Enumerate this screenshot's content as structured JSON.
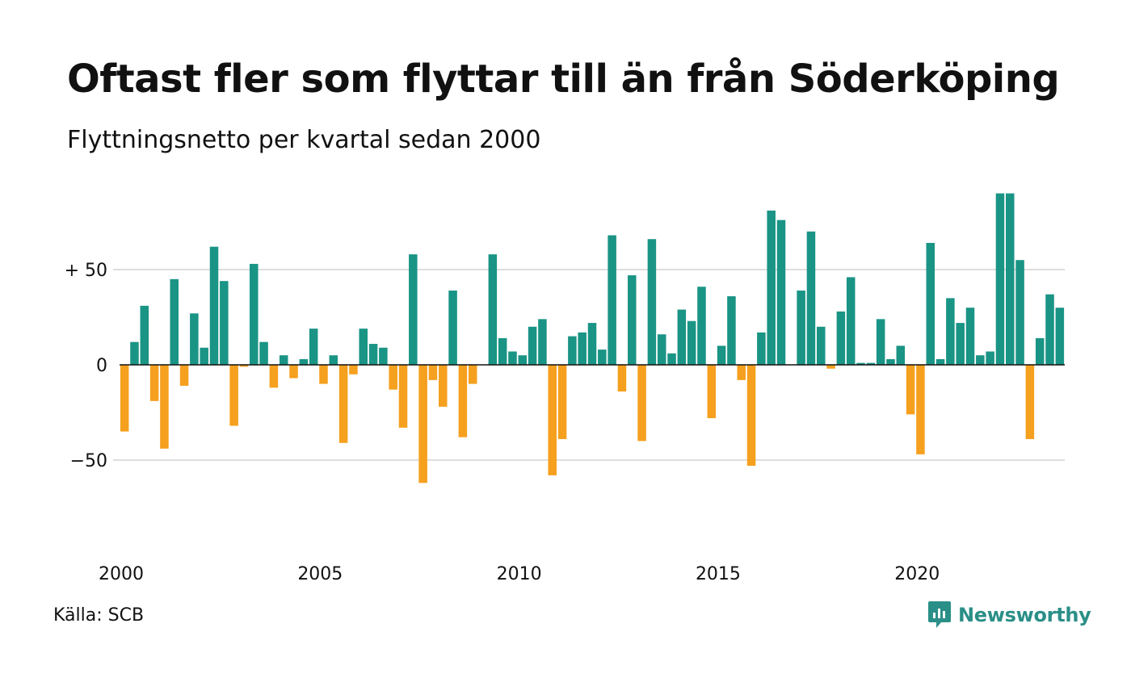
{
  "title": "Oftast fler som flyttar till än från Söderköping",
  "subtitle": "Flyttningsnetto per kvartal sedan 2000",
  "source": "Källa: SCB",
  "brand": "Newsworthy",
  "colors": {
    "positive": "#1a9485",
    "negative": "#f5a01e",
    "grid": "#dddddd",
    "zero_line": "#111111",
    "brand": "#2a8f87"
  },
  "chart_data": {
    "type": "bar",
    "x_start_year": 2000,
    "quarters_per_year": 4,
    "x_tick_labels": [
      "2000",
      "2005",
      "2010",
      "2015",
      "2020"
    ],
    "y_ticks": [
      50,
      0,
      -50
    ],
    "y_tick_labels": [
      "+ 50",
      "0",
      "−50"
    ],
    "ylim": [
      -95,
      95
    ],
    "grid": true,
    "values": [
      -35,
      12,
      31,
      -19,
      -44,
      45,
      -11,
      27,
      9,
      62,
      44,
      -32,
      -1,
      53,
      12,
      -12,
      5,
      -7,
      3,
      19,
      -10,
      5,
      -41,
      -5,
      19,
      11,
      9,
      -13,
      -33,
      58,
      -62,
      -8,
      -22,
      39,
      -38,
      -10,
      0,
      58,
      14,
      7,
      5,
      20,
      24,
      -58,
      -39,
      15,
      17,
      22,
      8,
      68,
      -14,
      47,
      -40,
      66,
      16,
      6,
      29,
      23,
      41,
      -28,
      10,
      36,
      -8,
      -53,
      17,
      81,
      76,
      0,
      39,
      70,
      20,
      -2,
      28,
      46,
      1,
      1,
      24,
      3,
      10,
      -26,
      -47,
      64,
      3,
      35,
      22,
      30,
      5,
      7,
      90,
      90,
      55,
      -39,
      14,
      37,
      30
    ]
  }
}
